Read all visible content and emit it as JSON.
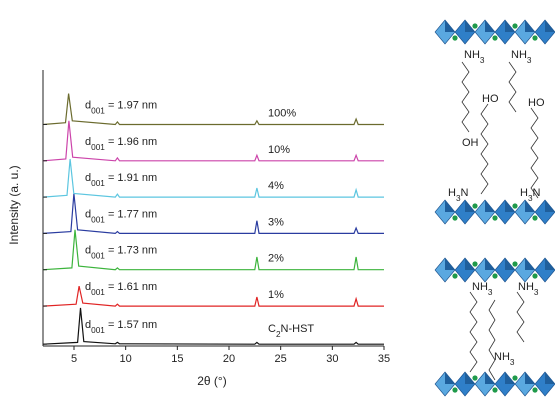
{
  "chart_data": {
    "type": "line",
    "xlabel": "2θ (°)",
    "ylabel": "Intensity (a. u.)",
    "xlim": [
      2,
      35
    ],
    "xticks": [
      5,
      10,
      15,
      20,
      25,
      30,
      35
    ],
    "ylim": [
      0,
      7.6
    ],
    "series": [
      {
        "name": "C2N-HST",
        "name_parts": [
          "C",
          "2",
          "N-HST"
        ],
        "d_label": [
          "d",
          "001",
          " = 1.57 nm"
        ],
        "color": "#111111",
        "x": [
          2,
          5.35,
          5.63,
          5.95,
          9.0,
          9.2,
          9.4,
          22.5,
          22.7,
          22.9,
          32.1,
          32.3,
          32.5,
          35
        ],
        "values": [
          0.05,
          0.1,
          1.05,
          0.12,
          0.06,
          0.1,
          0.06,
          0.05,
          0.1,
          0.05,
          0.05,
          0.1,
          0.05,
          0.05
        ]
      },
      {
        "name": "1%",
        "d_label": [
          "d",
          "001",
          " = 1.61 nm"
        ],
        "color": "#e02424",
        "x": [
          2,
          5.2,
          5.49,
          5.85,
          9.0,
          9.2,
          9.4,
          22.5,
          22.7,
          22.9,
          32.1,
          32.3,
          32.5,
          35
        ],
        "values": [
          1.1,
          1.15,
          1.65,
          1.18,
          1.1,
          1.15,
          1.1,
          1.1,
          1.35,
          1.1,
          1.1,
          1.3,
          1.1,
          1.1
        ]
      },
      {
        "name": "2%",
        "d_label": [
          "d",
          "001",
          " = 1.73 nm"
        ],
        "color": "#3cb43c",
        "x": [
          2,
          4.8,
          5.1,
          5.45,
          9.0,
          9.2,
          9.4,
          22.5,
          22.7,
          22.9,
          32.1,
          32.3,
          32.5,
          35
        ],
        "values": [
          2.1,
          2.15,
          3.2,
          2.2,
          2.1,
          2.15,
          2.1,
          2.1,
          2.45,
          2.1,
          2.1,
          2.45,
          2.1,
          2.1
        ]
      },
      {
        "name": "3%",
        "d_label": [
          "d",
          "001",
          " = 1.77 nm"
        ],
        "color": "#2a3ca0",
        "x": [
          2,
          4.7,
          4.99,
          5.35,
          9.0,
          9.2,
          9.4,
          22.5,
          22.7,
          22.9,
          32.1,
          32.3,
          32.5,
          35
        ],
        "values": [
          3.1,
          3.15,
          4.2,
          3.2,
          3.1,
          3.15,
          3.1,
          3.1,
          3.45,
          3.1,
          3.1,
          3.25,
          3.1,
          3.1
        ]
      },
      {
        "name": "4%",
        "d_label": [
          "d",
          "001",
          " = 1.91 nm"
        ],
        "color": "#5cc6e0",
        "x": [
          2,
          4.32,
          4.62,
          4.98,
          9.0,
          9.2,
          9.4,
          22.5,
          22.7,
          22.9,
          32.1,
          32.3,
          32.5,
          35
        ],
        "values": [
          4.1,
          4.15,
          5.15,
          4.2,
          4.1,
          4.18,
          4.1,
          4.1,
          4.35,
          4.1,
          4.1,
          4.3,
          4.1,
          4.1
        ]
      },
      {
        "name": "10%",
        "d_label": [
          "d",
          "001",
          " = 1.96 nm"
        ],
        "color": "#cc44aa",
        "x": [
          2,
          4.21,
          4.51,
          4.87,
          9.0,
          9.2,
          9.4,
          22.5,
          22.7,
          22.9,
          32.1,
          32.3,
          32.5,
          35
        ],
        "values": [
          5.1,
          5.15,
          6.2,
          5.2,
          5.1,
          5.18,
          5.1,
          5.1,
          5.25,
          5.1,
          5.1,
          5.25,
          5.1,
          5.1
        ]
      },
      {
        "name": "100%",
        "d_label": [
          "d",
          "001",
          " = 1.97 nm"
        ],
        "color": "#6b6b2e",
        "x": [
          2,
          4.18,
          4.48,
          4.84,
          9.0,
          9.2,
          9.4,
          22.5,
          22.7,
          22.9,
          32.1,
          32.3,
          32.5,
          35
        ],
        "values": [
          6.1,
          6.15,
          6.95,
          6.2,
          6.1,
          6.17,
          6.1,
          6.1,
          6.2,
          6.1,
          6.1,
          6.25,
          6.1,
          6.1
        ]
      }
    ]
  },
  "diagram": {
    "top_labels": [
      [
        "NH",
        "3"
      ],
      [
        "NH",
        "3"
      ],
      [
        "HO"
      ],
      [
        "HO"
      ],
      [
        "OH"
      ],
      [
        "H",
        "3",
        "N"
      ],
      [
        "H",
        "3",
        "N"
      ]
    ],
    "bottom_labels": [
      [
        "NH",
        "3"
      ],
      [
        "NH",
        "3"
      ],
      [
        "NH",
        "3"
      ]
    ]
  }
}
